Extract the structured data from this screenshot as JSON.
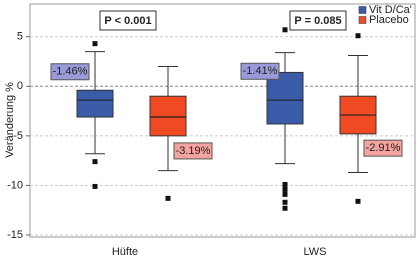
{
  "chart_data": {
    "type": "box",
    "y_label": "Veränderung %",
    "categories": [
      "Hüfte",
      "LWS"
    ],
    "annotations": [
      "P < 0.001",
      "P = 0.085"
    ],
    "ylim": [
      -15.2,
      8.3
    ],
    "yticks": [
      -15,
      -10,
      -5,
      0,
      5
    ],
    "grid": true,
    "legend": "top-right",
    "series": [
      {
        "name": "Vit D/Ca'",
        "color": "#3a5ba8",
        "label_color": "#9a9ad8",
        "means": [
          -1.46,
          -1.41
        ],
        "value_labels": [
          "-1.46%",
          "-1.41%"
        ],
        "boxes": [
          {
            "whislo": -6.8,
            "q1": -3.1,
            "med": -1.4,
            "q3": -0.4,
            "whishi": 3.5,
            "fliers": [
              4.3,
              -7.6,
              -10.1
            ]
          },
          {
            "whislo": -7.8,
            "q1": -3.8,
            "med": -1.4,
            "q3": 1.4,
            "whishi": 3.4,
            "fliers": [
              5.7,
              -9.9,
              -10.4,
              -10.9,
              -11.7,
              -12.3
            ]
          }
        ]
      },
      {
        "name": "Placebo",
        "color": "#f04a22",
        "label_color": "#f4a3a0",
        "means": [
          -3.19,
          -2.91
        ],
        "value_labels": [
          "-3.19%",
          "-2.91%"
        ],
        "boxes": [
          {
            "whislo": -8.5,
            "q1": -5.0,
            "med": -3.1,
            "q3": -1.0,
            "whishi": 2.0,
            "fliers": [
              -11.3
            ]
          },
          {
            "whislo": -8.7,
            "q1": -4.8,
            "med": -2.9,
            "q3": -1.0,
            "whishi": 3.1,
            "fliers": [
              5.1,
              -11.6
            ]
          }
        ]
      }
    ]
  }
}
